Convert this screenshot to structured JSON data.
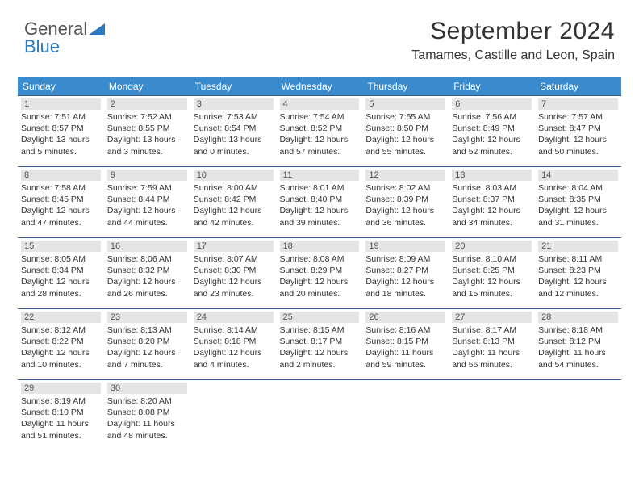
{
  "logo": {
    "word1": "General",
    "word2": "Blue"
  },
  "title": "September 2024",
  "location": "Tamames, Castille and Leon, Spain",
  "header_bg": "#3a8bce",
  "border_color": "#2f5e8c",
  "day_header_bg": "#e5e5e5",
  "weekdays": [
    "Sunday",
    "Monday",
    "Tuesday",
    "Wednesday",
    "Thursday",
    "Friday",
    "Saturday"
  ],
  "weeks": [
    [
      {
        "n": "1",
        "sr": "Sunrise: 7:51 AM",
        "ss": "Sunset: 8:57 PM",
        "d1": "Daylight: 13 hours",
        "d2": "and 5 minutes."
      },
      {
        "n": "2",
        "sr": "Sunrise: 7:52 AM",
        "ss": "Sunset: 8:55 PM",
        "d1": "Daylight: 13 hours",
        "d2": "and 3 minutes."
      },
      {
        "n": "3",
        "sr": "Sunrise: 7:53 AM",
        "ss": "Sunset: 8:54 PM",
        "d1": "Daylight: 13 hours",
        "d2": "and 0 minutes."
      },
      {
        "n": "4",
        "sr": "Sunrise: 7:54 AM",
        "ss": "Sunset: 8:52 PM",
        "d1": "Daylight: 12 hours",
        "d2": "and 57 minutes."
      },
      {
        "n": "5",
        "sr": "Sunrise: 7:55 AM",
        "ss": "Sunset: 8:50 PM",
        "d1": "Daylight: 12 hours",
        "d2": "and 55 minutes."
      },
      {
        "n": "6",
        "sr": "Sunrise: 7:56 AM",
        "ss": "Sunset: 8:49 PM",
        "d1": "Daylight: 12 hours",
        "d2": "and 52 minutes."
      },
      {
        "n": "7",
        "sr": "Sunrise: 7:57 AM",
        "ss": "Sunset: 8:47 PM",
        "d1": "Daylight: 12 hours",
        "d2": "and 50 minutes."
      }
    ],
    [
      {
        "n": "8",
        "sr": "Sunrise: 7:58 AM",
        "ss": "Sunset: 8:45 PM",
        "d1": "Daylight: 12 hours",
        "d2": "and 47 minutes."
      },
      {
        "n": "9",
        "sr": "Sunrise: 7:59 AM",
        "ss": "Sunset: 8:44 PM",
        "d1": "Daylight: 12 hours",
        "d2": "and 44 minutes."
      },
      {
        "n": "10",
        "sr": "Sunrise: 8:00 AM",
        "ss": "Sunset: 8:42 PM",
        "d1": "Daylight: 12 hours",
        "d2": "and 42 minutes."
      },
      {
        "n": "11",
        "sr": "Sunrise: 8:01 AM",
        "ss": "Sunset: 8:40 PM",
        "d1": "Daylight: 12 hours",
        "d2": "and 39 minutes."
      },
      {
        "n": "12",
        "sr": "Sunrise: 8:02 AM",
        "ss": "Sunset: 8:39 PM",
        "d1": "Daylight: 12 hours",
        "d2": "and 36 minutes."
      },
      {
        "n": "13",
        "sr": "Sunrise: 8:03 AM",
        "ss": "Sunset: 8:37 PM",
        "d1": "Daylight: 12 hours",
        "d2": "and 34 minutes."
      },
      {
        "n": "14",
        "sr": "Sunrise: 8:04 AM",
        "ss": "Sunset: 8:35 PM",
        "d1": "Daylight: 12 hours",
        "d2": "and 31 minutes."
      }
    ],
    [
      {
        "n": "15",
        "sr": "Sunrise: 8:05 AM",
        "ss": "Sunset: 8:34 PM",
        "d1": "Daylight: 12 hours",
        "d2": "and 28 minutes."
      },
      {
        "n": "16",
        "sr": "Sunrise: 8:06 AM",
        "ss": "Sunset: 8:32 PM",
        "d1": "Daylight: 12 hours",
        "d2": "and 26 minutes."
      },
      {
        "n": "17",
        "sr": "Sunrise: 8:07 AM",
        "ss": "Sunset: 8:30 PM",
        "d1": "Daylight: 12 hours",
        "d2": "and 23 minutes."
      },
      {
        "n": "18",
        "sr": "Sunrise: 8:08 AM",
        "ss": "Sunset: 8:29 PM",
        "d1": "Daylight: 12 hours",
        "d2": "and 20 minutes."
      },
      {
        "n": "19",
        "sr": "Sunrise: 8:09 AM",
        "ss": "Sunset: 8:27 PM",
        "d1": "Daylight: 12 hours",
        "d2": "and 18 minutes."
      },
      {
        "n": "20",
        "sr": "Sunrise: 8:10 AM",
        "ss": "Sunset: 8:25 PM",
        "d1": "Daylight: 12 hours",
        "d2": "and 15 minutes."
      },
      {
        "n": "21",
        "sr": "Sunrise: 8:11 AM",
        "ss": "Sunset: 8:23 PM",
        "d1": "Daylight: 12 hours",
        "d2": "and 12 minutes."
      }
    ],
    [
      {
        "n": "22",
        "sr": "Sunrise: 8:12 AM",
        "ss": "Sunset: 8:22 PM",
        "d1": "Daylight: 12 hours",
        "d2": "and 10 minutes."
      },
      {
        "n": "23",
        "sr": "Sunrise: 8:13 AM",
        "ss": "Sunset: 8:20 PM",
        "d1": "Daylight: 12 hours",
        "d2": "and 7 minutes."
      },
      {
        "n": "24",
        "sr": "Sunrise: 8:14 AM",
        "ss": "Sunset: 8:18 PM",
        "d1": "Daylight: 12 hours",
        "d2": "and 4 minutes."
      },
      {
        "n": "25",
        "sr": "Sunrise: 8:15 AM",
        "ss": "Sunset: 8:17 PM",
        "d1": "Daylight: 12 hours",
        "d2": "and 2 minutes."
      },
      {
        "n": "26",
        "sr": "Sunrise: 8:16 AM",
        "ss": "Sunset: 8:15 PM",
        "d1": "Daylight: 11 hours",
        "d2": "and 59 minutes."
      },
      {
        "n": "27",
        "sr": "Sunrise: 8:17 AM",
        "ss": "Sunset: 8:13 PM",
        "d1": "Daylight: 11 hours",
        "d2": "and 56 minutes."
      },
      {
        "n": "28",
        "sr": "Sunrise: 8:18 AM",
        "ss": "Sunset: 8:12 PM",
        "d1": "Daylight: 11 hours",
        "d2": "and 54 minutes."
      }
    ],
    [
      {
        "n": "29",
        "sr": "Sunrise: 8:19 AM",
        "ss": "Sunset: 8:10 PM",
        "d1": "Daylight: 11 hours",
        "d2": "and 51 minutes."
      },
      {
        "n": "30",
        "sr": "Sunrise: 8:20 AM",
        "ss": "Sunset: 8:08 PM",
        "d1": "Daylight: 11 hours",
        "d2": "and 48 minutes."
      },
      null,
      null,
      null,
      null,
      null
    ]
  ]
}
